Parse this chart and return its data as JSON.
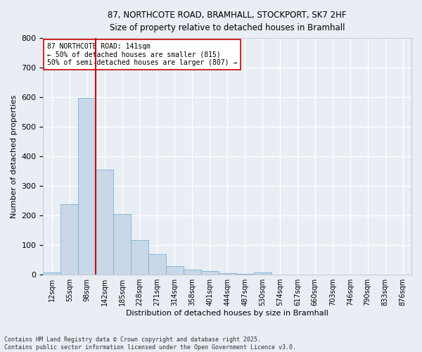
{
  "title_line1": "87, NORTHCOTE ROAD, BRAMHALL, STOCKPORT, SK7 2HF",
  "title_line2": "Size of property relative to detached houses in Bramhall",
  "xlabel": "Distribution of detached houses by size in Bramhall",
  "ylabel": "Number of detached properties",
  "categories": [
    "12sqm",
    "55sqm",
    "98sqm",
    "142sqm",
    "185sqm",
    "228sqm",
    "271sqm",
    "314sqm",
    "358sqm",
    "401sqm",
    "444sqm",
    "487sqm",
    "530sqm",
    "574sqm",
    "617sqm",
    "660sqm",
    "703sqm",
    "746sqm",
    "790sqm",
    "833sqm",
    "876sqm"
  ],
  "values": [
    8,
    238,
    598,
    355,
    205,
    118,
    70,
    28,
    18,
    13,
    5,
    2,
    8,
    0,
    0,
    0,
    0,
    0,
    0,
    0,
    0
  ],
  "bar_color": "#c8d8e8",
  "bar_edge_color": "#7bafd4",
  "vline_color": "#cc0000",
  "annotation_text": "87 NORTHCOTE ROAD: 141sqm\n← 50% of detached houses are smaller (815)\n50% of semi-detached houses are larger (807) →",
  "annotation_box_color": "white",
  "annotation_box_edge": "#cc0000",
  "ylim": [
    0,
    800
  ],
  "yticks": [
    0,
    100,
    200,
    300,
    400,
    500,
    600,
    700,
    800
  ],
  "footer_line1": "Contains HM Land Registry data © Crown copyright and database right 2025.",
  "footer_line2": "Contains public sector information licensed under the Open Government Licence v3.0.",
  "bg_color": "#e8eef4",
  "plot_bg_color": "#e8eef4",
  "grid_color": "white",
  "vline_idx": 2.5
}
